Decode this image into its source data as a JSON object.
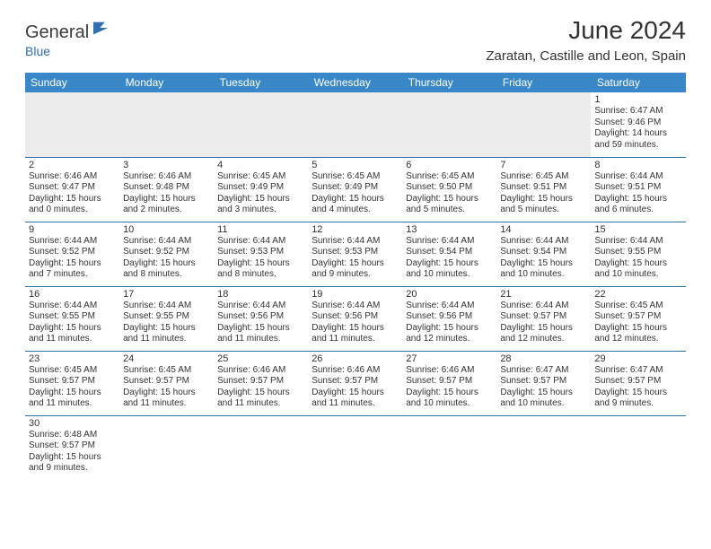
{
  "logo": {
    "main": "General",
    "sub": "Blue"
  },
  "title": "June 2024",
  "location": "Zaratan, Castille and Leon, Spain",
  "colors": {
    "header_bg": "#3a87c7",
    "border": "#2f6fb0",
    "text": "#333333"
  },
  "weekdays": [
    "Sunday",
    "Monday",
    "Tuesday",
    "Wednesday",
    "Thursday",
    "Friday",
    "Saturday"
  ],
  "weeks": [
    [
      null,
      null,
      null,
      null,
      null,
      null,
      {
        "n": "1",
        "sr": "Sunrise: 6:47 AM",
        "ss": "Sunset: 9:46 PM",
        "dl": "Daylight: 14 hours and 59 minutes."
      }
    ],
    [
      {
        "n": "2",
        "sr": "Sunrise: 6:46 AM",
        "ss": "Sunset: 9:47 PM",
        "dl": "Daylight: 15 hours and 0 minutes."
      },
      {
        "n": "3",
        "sr": "Sunrise: 6:46 AM",
        "ss": "Sunset: 9:48 PM",
        "dl": "Daylight: 15 hours and 2 minutes."
      },
      {
        "n": "4",
        "sr": "Sunrise: 6:45 AM",
        "ss": "Sunset: 9:49 PM",
        "dl": "Daylight: 15 hours and 3 minutes."
      },
      {
        "n": "5",
        "sr": "Sunrise: 6:45 AM",
        "ss": "Sunset: 9:49 PM",
        "dl": "Daylight: 15 hours and 4 minutes."
      },
      {
        "n": "6",
        "sr": "Sunrise: 6:45 AM",
        "ss": "Sunset: 9:50 PM",
        "dl": "Daylight: 15 hours and 5 minutes."
      },
      {
        "n": "7",
        "sr": "Sunrise: 6:45 AM",
        "ss": "Sunset: 9:51 PM",
        "dl": "Daylight: 15 hours and 5 minutes."
      },
      {
        "n": "8",
        "sr": "Sunrise: 6:44 AM",
        "ss": "Sunset: 9:51 PM",
        "dl": "Daylight: 15 hours and 6 minutes."
      }
    ],
    [
      {
        "n": "9",
        "sr": "Sunrise: 6:44 AM",
        "ss": "Sunset: 9:52 PM",
        "dl": "Daylight: 15 hours and 7 minutes."
      },
      {
        "n": "10",
        "sr": "Sunrise: 6:44 AM",
        "ss": "Sunset: 9:52 PM",
        "dl": "Daylight: 15 hours and 8 minutes."
      },
      {
        "n": "11",
        "sr": "Sunrise: 6:44 AM",
        "ss": "Sunset: 9:53 PM",
        "dl": "Daylight: 15 hours and 8 minutes."
      },
      {
        "n": "12",
        "sr": "Sunrise: 6:44 AM",
        "ss": "Sunset: 9:53 PM",
        "dl": "Daylight: 15 hours and 9 minutes."
      },
      {
        "n": "13",
        "sr": "Sunrise: 6:44 AM",
        "ss": "Sunset: 9:54 PM",
        "dl": "Daylight: 15 hours and 10 minutes."
      },
      {
        "n": "14",
        "sr": "Sunrise: 6:44 AM",
        "ss": "Sunset: 9:54 PM",
        "dl": "Daylight: 15 hours and 10 minutes."
      },
      {
        "n": "15",
        "sr": "Sunrise: 6:44 AM",
        "ss": "Sunset: 9:55 PM",
        "dl": "Daylight: 15 hours and 10 minutes."
      }
    ],
    [
      {
        "n": "16",
        "sr": "Sunrise: 6:44 AM",
        "ss": "Sunset: 9:55 PM",
        "dl": "Daylight: 15 hours and 11 minutes."
      },
      {
        "n": "17",
        "sr": "Sunrise: 6:44 AM",
        "ss": "Sunset: 9:55 PM",
        "dl": "Daylight: 15 hours and 11 minutes."
      },
      {
        "n": "18",
        "sr": "Sunrise: 6:44 AM",
        "ss": "Sunset: 9:56 PM",
        "dl": "Daylight: 15 hours and 11 minutes."
      },
      {
        "n": "19",
        "sr": "Sunrise: 6:44 AM",
        "ss": "Sunset: 9:56 PM",
        "dl": "Daylight: 15 hours and 11 minutes."
      },
      {
        "n": "20",
        "sr": "Sunrise: 6:44 AM",
        "ss": "Sunset: 9:56 PM",
        "dl": "Daylight: 15 hours and 12 minutes."
      },
      {
        "n": "21",
        "sr": "Sunrise: 6:44 AM",
        "ss": "Sunset: 9:57 PM",
        "dl": "Daylight: 15 hours and 12 minutes."
      },
      {
        "n": "22",
        "sr": "Sunrise: 6:45 AM",
        "ss": "Sunset: 9:57 PM",
        "dl": "Daylight: 15 hours and 12 minutes."
      }
    ],
    [
      {
        "n": "23",
        "sr": "Sunrise: 6:45 AM",
        "ss": "Sunset: 9:57 PM",
        "dl": "Daylight: 15 hours and 11 minutes."
      },
      {
        "n": "24",
        "sr": "Sunrise: 6:45 AM",
        "ss": "Sunset: 9:57 PM",
        "dl": "Daylight: 15 hours and 11 minutes."
      },
      {
        "n": "25",
        "sr": "Sunrise: 6:46 AM",
        "ss": "Sunset: 9:57 PM",
        "dl": "Daylight: 15 hours and 11 minutes."
      },
      {
        "n": "26",
        "sr": "Sunrise: 6:46 AM",
        "ss": "Sunset: 9:57 PM",
        "dl": "Daylight: 15 hours and 11 minutes."
      },
      {
        "n": "27",
        "sr": "Sunrise: 6:46 AM",
        "ss": "Sunset: 9:57 PM",
        "dl": "Daylight: 15 hours and 10 minutes."
      },
      {
        "n": "28",
        "sr": "Sunrise: 6:47 AM",
        "ss": "Sunset: 9:57 PM",
        "dl": "Daylight: 15 hours and 10 minutes."
      },
      {
        "n": "29",
        "sr": "Sunrise: 6:47 AM",
        "ss": "Sunset: 9:57 PM",
        "dl": "Daylight: 15 hours and 9 minutes."
      }
    ],
    [
      {
        "n": "30",
        "sr": "Sunrise: 6:48 AM",
        "ss": "Sunset: 9:57 PM",
        "dl": "Daylight: 15 hours and 9 minutes."
      },
      null,
      null,
      null,
      null,
      null,
      null
    ]
  ]
}
